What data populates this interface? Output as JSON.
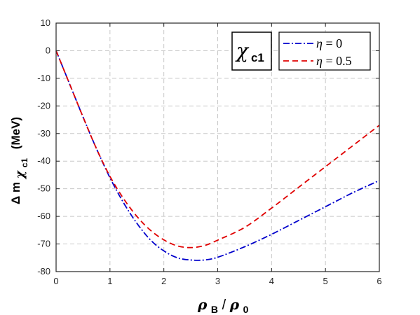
{
  "chart_data": {
    "type": "line",
    "annotation": {
      "symbol": "χ",
      "subscript": "c1"
    },
    "xlabel": {
      "main": "ρ",
      "sub": "B",
      "slash": "/",
      "main2": "ρ",
      "sub2": "0"
    },
    "ylabel": {
      "prefix": "Δ m",
      "symbol": "χ",
      "subscript": "c1",
      "unit": "(MeV)"
    },
    "xlim": [
      0,
      6
    ],
    "ylim": [
      -80,
      10
    ],
    "xticks": [
      0,
      1,
      2,
      3,
      4,
      5,
      6
    ],
    "yticks": [
      10,
      0,
      -10,
      -20,
      -30,
      -40,
      -50,
      -60,
      -70,
      -80
    ],
    "grid": true,
    "legend_position": "top-right",
    "series": [
      {
        "name": "η = 0",
        "legend_symbol": "η",
        "legend_value": "= 0",
        "color": "#0000cc",
        "dash": "dashdot",
        "x": [
          0,
          0.25,
          0.5,
          0.75,
          1.0,
          1.25,
          1.5,
          1.75,
          2.0,
          2.25,
          2.5,
          2.75,
          3.0,
          3.5,
          4.0,
          4.5,
          5.0,
          5.5,
          6.0
        ],
        "y": [
          0,
          -12,
          -24,
          -35.5,
          -46,
          -55,
          -62.5,
          -68.5,
          -72.5,
          -75,
          -75.8,
          -75.8,
          -74.8,
          -71,
          -66.5,
          -61.5,
          -56.5,
          -51.5,
          -47
        ]
      },
      {
        "name": "η = 0.5",
        "legend_symbol": "η",
        "legend_value": "= 0.5",
        "color": "#e00000",
        "dash": "dashed",
        "x": [
          0,
          0.25,
          0.5,
          0.75,
          1.0,
          1.25,
          1.5,
          1.75,
          2.0,
          2.25,
          2.5,
          2.75,
          3.0,
          3.5,
          4.0,
          4.5,
          5.0,
          5.5,
          6.0
        ],
        "y": [
          0,
          -12,
          -24,
          -35.5,
          -45.5,
          -53.5,
          -60,
          -65,
          -68.5,
          -70.7,
          -71.3,
          -70.6,
          -68.6,
          -64,
          -57,
          -49.5,
          -42,
          -34.5,
          -27
        ]
      }
    ]
  }
}
